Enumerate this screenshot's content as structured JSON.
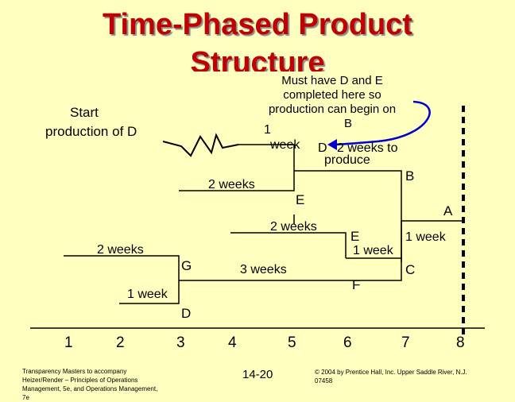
{
  "title": {
    "line1": "Time-Phased Product",
    "line2": "Structure"
  },
  "note": {
    "line1": "Must have D and E",
    "line2": "completed here so",
    "line3": "production can begin on",
    "line4": "B"
  },
  "start_label": {
    "line1": "Start",
    "line2": "production of D"
  },
  "labels": {
    "one_week_top": "1",
    "week_top": "week",
    "d_top": "D",
    "two_weeks_produce_1": "2 weeks to",
    "two_weeks_produce_2": "produce",
    "b": "B",
    "two_weeks_1": "2 weeks",
    "e_top": "E",
    "a": "A",
    "two_weeks_2": "2 weeks",
    "e_mid": "E",
    "one_week_a": "1 week",
    "one_week_e": "1 week",
    "two_weeks_3": "2 weeks",
    "g": "G",
    "three_weeks": "3 weeks",
    "c": "C",
    "f": "F",
    "one_week_d": "1 week",
    "d_bottom": "D"
  },
  "axis": {
    "ticks": [
      "1",
      "2",
      "3",
      "4",
      "5",
      "6",
      "7",
      "8"
    ]
  },
  "footer": {
    "left_1": "Transparency Masters to accompany",
    "left_2": "Heizer/Render – Principles of Operations",
    "left_3": "Management, 5e, and Operations Management,",
    "left_4": "7e",
    "center": "14-20",
    "right_1": "© 2004 by Prentice Hall, Inc. Upper Saddle River, N.J.",
    "right_2": "07458"
  },
  "colors": {
    "title": "#c00000",
    "background": "#ffffc0",
    "arrow": "#0000cc"
  }
}
